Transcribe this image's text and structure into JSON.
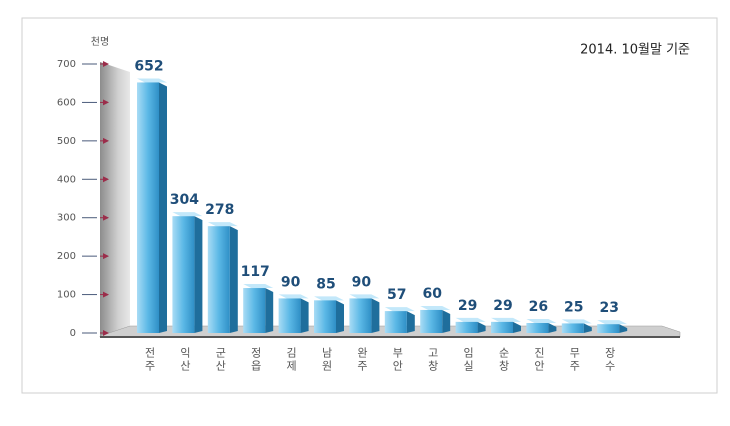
{
  "chart_data": {
    "type": "bar3d",
    "unit_label": "천명",
    "annotation": "2014. 10월말 기준",
    "categories": [
      "전주",
      "익산",
      "군산",
      "정읍",
      "김제",
      "남원",
      "완주",
      "부안",
      "고창",
      "임실",
      "순창",
      "진안",
      "무주",
      "장수"
    ],
    "values": [
      652,
      304,
      278,
      117,
      90,
      85,
      90,
      57,
      60,
      29,
      29,
      26,
      25,
      23
    ],
    "color": "#5bb8e6",
    "ylim": [
      0,
      700
    ],
    "yticks": [
      0,
      100,
      200,
      300,
      400,
      500,
      600,
      700
    ]
  }
}
